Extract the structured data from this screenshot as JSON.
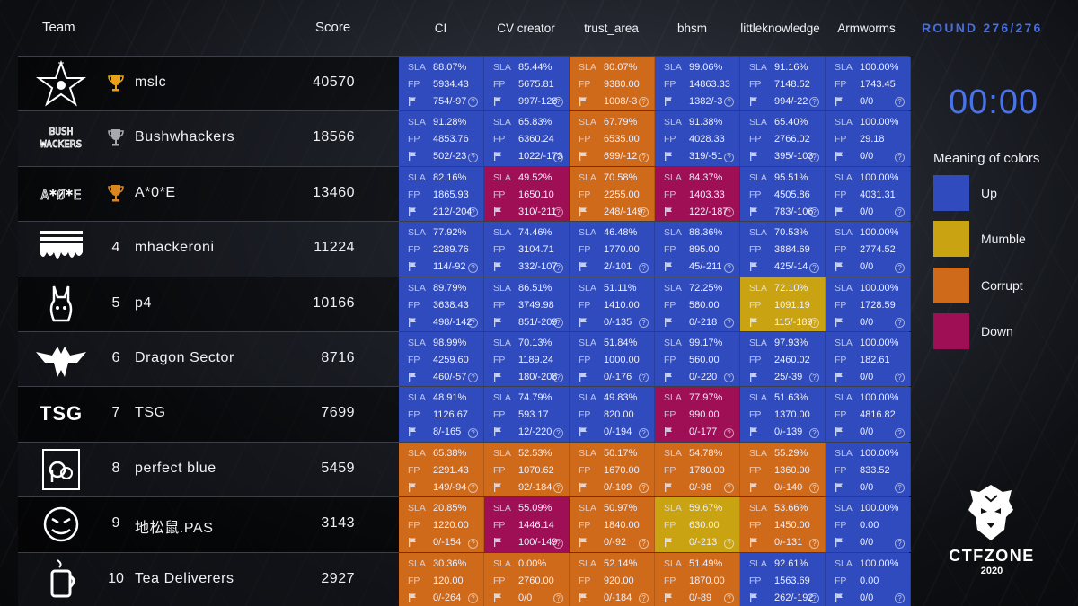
{
  "header": {
    "team": "Team",
    "score": "Score",
    "services": [
      "CI",
      "CV creator",
      "trust_area",
      "bhsm",
      "littleknowledge",
      "Armworms"
    ],
    "round": "ROUND 276/276"
  },
  "timer": "00:00",
  "legend": {
    "title": "Meaning of colors",
    "items": [
      {
        "label": "Up",
        "color": "#2f4bbd"
      },
      {
        "label": "Mumble",
        "color": "#c9a312"
      },
      {
        "label": "Corrupt",
        "color": "#cf6a1b"
      },
      {
        "label": "Down",
        "color": "#9e0f55"
      }
    ]
  },
  "brand": {
    "name": "CTFZONE",
    "year": "2020"
  },
  "cell_labels": {
    "sla": "SLA",
    "fp": "FP",
    "help": "?"
  },
  "teams": [
    {
      "rank": "1",
      "trophy": "gold",
      "name": "mslc",
      "score": "40570",
      "logo": "star-logo",
      "cells": [
        {
          "status": "up",
          "sla": "88.07%",
          "fp": "5934.43",
          "flags": "754/-97"
        },
        {
          "status": "up",
          "sla": "85.44%",
          "fp": "5675.81",
          "flags": "997/-128"
        },
        {
          "status": "corrupt",
          "sla": "80.07%",
          "fp": "9380.00",
          "flags": "1008/-3"
        },
        {
          "status": "up",
          "sla": "99.06%",
          "fp": "14863.33",
          "flags": "1382/-3"
        },
        {
          "status": "up",
          "sla": "91.16%",
          "fp": "7148.52",
          "flags": "994/-22"
        },
        {
          "status": "up",
          "sla": "100.00%",
          "fp": "1743.45",
          "flags": "0/0"
        }
      ]
    },
    {
      "rank": "2",
      "trophy": "silver",
      "name": "Bushwhackers",
      "score": "18566",
      "logo": "bushwhackers-logo",
      "cells": [
        {
          "status": "up",
          "sla": "91.28%",
          "fp": "4853.76",
          "flags": "502/-23"
        },
        {
          "status": "up",
          "sla": "65.83%",
          "fp": "6360.24",
          "flags": "1022/-173"
        },
        {
          "status": "corrupt",
          "sla": "67.79%",
          "fp": "6535.00",
          "flags": "699/-12"
        },
        {
          "status": "up",
          "sla": "91.38%",
          "fp": "4028.33",
          "flags": "319/-51"
        },
        {
          "status": "up",
          "sla": "65.40%",
          "fp": "2766.02",
          "flags": "395/-103"
        },
        {
          "status": "up",
          "sla": "100.00%",
          "fp": "29.18",
          "flags": "0/0"
        }
      ]
    },
    {
      "rank": "3",
      "trophy": "bronze",
      "name": "A*0*E",
      "score": "13460",
      "logo": "a0e-logo",
      "cells": [
        {
          "status": "up",
          "sla": "82.16%",
          "fp": "1865.93",
          "flags": "212/-204"
        },
        {
          "status": "down",
          "sla": "49.52%",
          "fp": "1650.10",
          "flags": "310/-211"
        },
        {
          "status": "corrupt",
          "sla": "70.58%",
          "fp": "2255.00",
          "flags": "248/-149"
        },
        {
          "status": "down",
          "sla": "84.37%",
          "fp": "1403.33",
          "flags": "122/-187"
        },
        {
          "status": "up",
          "sla": "95.51%",
          "fp": "4505.86",
          "flags": "783/-106"
        },
        {
          "status": "up",
          "sla": "100.00%",
          "fp": "4031.31",
          "flags": "0/0"
        }
      ]
    },
    {
      "rank": "4",
      "trophy": "",
      "name": "mhackeroni",
      "score": "11224",
      "logo": "mhackeroni-logo",
      "cells": [
        {
          "status": "up",
          "sla": "77.92%",
          "fp": "2289.76",
          "flags": "114/-92"
        },
        {
          "status": "up",
          "sla": "74.46%",
          "fp": "3104.71",
          "flags": "332/-107"
        },
        {
          "status": "up",
          "sla": "46.48%",
          "fp": "1770.00",
          "flags": "2/-101"
        },
        {
          "status": "up",
          "sla": "88.36%",
          "fp": "895.00",
          "flags": "45/-211"
        },
        {
          "status": "up",
          "sla": "70.53%",
          "fp": "3884.69",
          "flags": "425/-14"
        },
        {
          "status": "up",
          "sla": "100.00%",
          "fp": "2774.52",
          "flags": "0/0"
        }
      ]
    },
    {
      "rank": "5",
      "trophy": "",
      "name": "p4",
      "score": "10166",
      "logo": "p4-logo",
      "cells": [
        {
          "status": "up",
          "sla": "89.79%",
          "fp": "3638.43",
          "flags": "498/-142"
        },
        {
          "status": "up",
          "sla": "86.51%",
          "fp": "3749.98",
          "flags": "851/-209"
        },
        {
          "status": "up",
          "sla": "51.11%",
          "fp": "1410.00",
          "flags": "0/-135"
        },
        {
          "status": "up",
          "sla": "72.25%",
          "fp": "580.00",
          "flags": "0/-218"
        },
        {
          "status": "mumble",
          "sla": "72.10%",
          "fp": "1091.19",
          "flags": "115/-189"
        },
        {
          "status": "up",
          "sla": "100.00%",
          "fp": "1728.59",
          "flags": "0/0"
        }
      ]
    },
    {
      "rank": "6",
      "trophy": "",
      "name": "Dragon Sector",
      "score": "8716",
      "logo": "dragon-logo",
      "cells": [
        {
          "status": "up",
          "sla": "98.99%",
          "fp": "4259.60",
          "flags": "460/-57"
        },
        {
          "status": "up",
          "sla": "70.13%",
          "fp": "1189.24",
          "flags": "180/-208"
        },
        {
          "status": "up",
          "sla": "51.84%",
          "fp": "1000.00",
          "flags": "0/-176"
        },
        {
          "status": "up",
          "sla": "99.17%",
          "fp": "560.00",
          "flags": "0/-220"
        },
        {
          "status": "up",
          "sla": "97.93%",
          "fp": "2460.02",
          "flags": "25/-39"
        },
        {
          "status": "up",
          "sla": "100.00%",
          "fp": "182.61",
          "flags": "0/0"
        }
      ]
    },
    {
      "rank": "7",
      "trophy": "",
      "name": "TSG",
      "score": "7699",
      "logo": "tsg-logo",
      "logo_text": "TSG",
      "cells": [
        {
          "status": "up",
          "sla": "48.91%",
          "fp": "1126.67",
          "flags": "8/-165"
        },
        {
          "status": "up",
          "sla": "74.79%",
          "fp": "593.17",
          "flags": "12/-220"
        },
        {
          "status": "up",
          "sla": "49.83%",
          "fp": "820.00",
          "flags": "0/-194"
        },
        {
          "status": "down",
          "sla": "77.97%",
          "fp": "990.00",
          "flags": "0/-177"
        },
        {
          "status": "up",
          "sla": "51.63%",
          "fp": "1370.00",
          "flags": "0/-139"
        },
        {
          "status": "up",
          "sla": "100.00%",
          "fp": "4816.82",
          "flags": "0/0"
        }
      ]
    },
    {
      "rank": "8",
      "trophy": "",
      "name": "perfect blue",
      "score": "5459",
      "logo": "perfect-blue-logo",
      "cells": [
        {
          "status": "corrupt",
          "sla": "65.38%",
          "fp": "2291.43",
          "flags": "149/-94"
        },
        {
          "status": "corrupt",
          "sla": "52.53%",
          "fp": "1070.62",
          "flags": "92/-184"
        },
        {
          "status": "corrupt",
          "sla": "50.17%",
          "fp": "1670.00",
          "flags": "0/-109"
        },
        {
          "status": "corrupt",
          "sla": "54.78%",
          "fp": "1780.00",
          "flags": "0/-98"
        },
        {
          "status": "corrupt",
          "sla": "55.29%",
          "fp": "1360.00",
          "flags": "0/-140"
        },
        {
          "status": "up",
          "sla": "100.00%",
          "fp": "833.52",
          "flags": "0/0"
        }
      ]
    },
    {
      "rank": "9",
      "trophy": "",
      "name": "地松鼠.PAS",
      "score": "3143",
      "logo": "pas-logo",
      "cells": [
        {
          "status": "corrupt",
          "sla": "20.85%",
          "fp": "1220.00",
          "flags": "0/-154"
        },
        {
          "status": "down",
          "sla": "55.09%",
          "fp": "1446.14",
          "flags": "100/-149"
        },
        {
          "status": "corrupt",
          "sla": "50.97%",
          "fp": "1840.00",
          "flags": "0/-92"
        },
        {
          "status": "mumble",
          "sla": "59.67%",
          "fp": "630.00",
          "flags": "0/-213"
        },
        {
          "status": "corrupt",
          "sla": "53.66%",
          "fp": "1450.00",
          "flags": "0/-131"
        },
        {
          "status": "up",
          "sla": "100.00%",
          "fp": "0.00",
          "flags": "0/0"
        }
      ]
    },
    {
      "rank": "10",
      "trophy": "",
      "name": "Tea Deliverers",
      "score": "2927",
      "logo": "tea-logo",
      "cells": [
        {
          "status": "corrupt",
          "sla": "30.36%",
          "fp": "120.00",
          "flags": "0/-264"
        },
        {
          "status": "corrupt",
          "sla": "0.00%",
          "fp": "2760.00",
          "flags": "0/0"
        },
        {
          "status": "corrupt",
          "sla": "52.14%",
          "fp": "920.00",
          "flags": "0/-184"
        },
        {
          "status": "corrupt",
          "sla": "51.49%",
          "fp": "1870.00",
          "flags": "0/-89"
        },
        {
          "status": "up",
          "sla": "92.61%",
          "fp": "1563.69",
          "flags": "262/-192"
        },
        {
          "status": "up",
          "sla": "100.00%",
          "fp": "0.00",
          "flags": "0/0"
        }
      ]
    }
  ]
}
